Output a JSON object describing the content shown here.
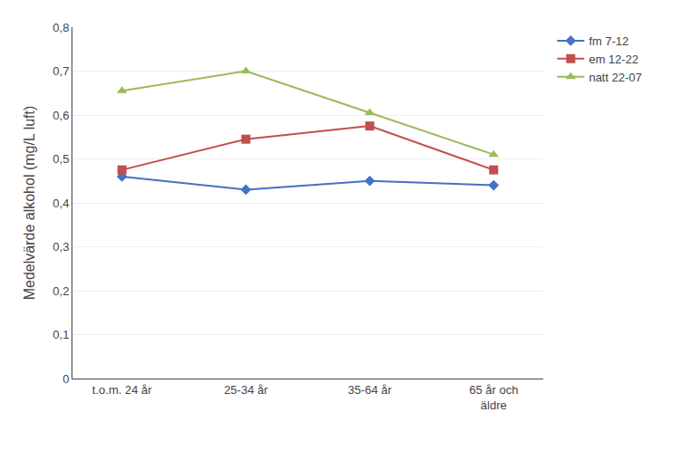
{
  "chart_data": {
    "type": "line",
    "categories": [
      "t.o.m. 24 år",
      "25-34 år",
      "35-64 år",
      "65 år och\näldre"
    ],
    "series": [
      {
        "name": "fm 7-12",
        "color": "#4472C4",
        "marker": "diamond",
        "values": [
          0.46,
          0.43,
          0.45,
          0.44
        ]
      },
      {
        "name": "em 12-22",
        "color": "#C0504D",
        "marker": "square",
        "values": [
          0.475,
          0.545,
          0.575,
          0.475
        ]
      },
      {
        "name": "natt 22-07",
        "color": "#9BBB59",
        "marker": "triangle-up",
        "values": [
          0.655,
          0.7,
          0.605,
          0.51
        ]
      }
    ],
    "ylabel": "Medelvärde alkohol (mg/L luft)",
    "ylim": [
      0,
      0.8
    ],
    "yticks": [
      0,
      {
        "value": 0.1,
        "label": "0,1"
      },
      {
        "value": 0.2,
        "label": "0,2"
      },
      {
        "value": 0.3,
        "label": "0,3"
      },
      {
        "value": 0.4,
        "label": "0,4"
      },
      {
        "value": 0.5,
        "label": "0,5"
      },
      {
        "value": 0.6,
        "label": "0,6"
      },
      {
        "value": 0.7,
        "label": "0,7"
      },
      {
        "value": 0.8,
        "label": "0,8"
      }
    ],
    "grid": "y",
    "legend": "right"
  }
}
